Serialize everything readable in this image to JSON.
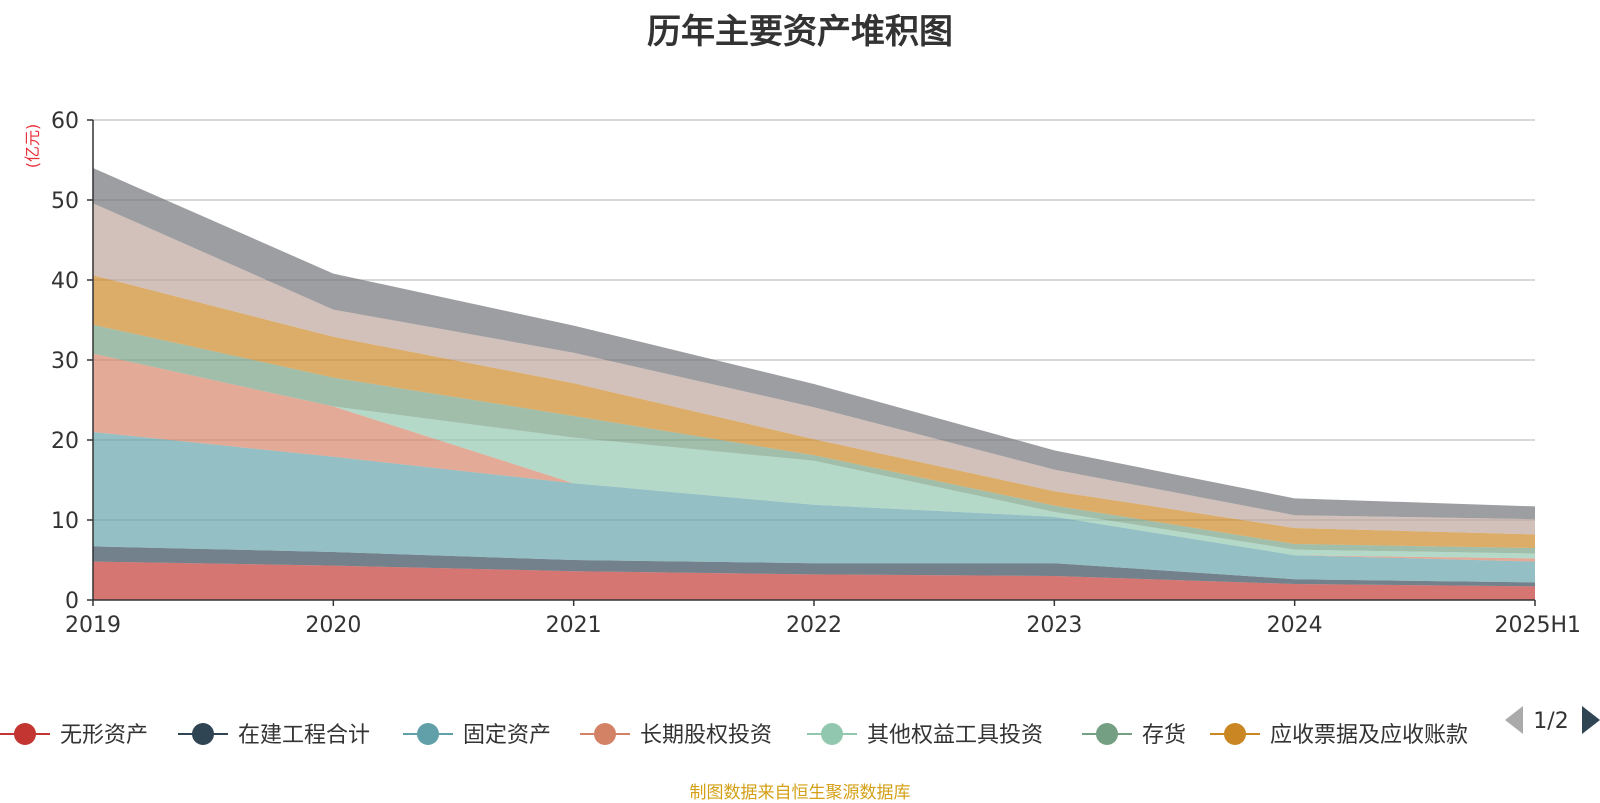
{
  "chart_data": {
    "type": "area",
    "title": "历年主要资产堆积图",
    "ylabel": "(亿元)",
    "xlabel": "",
    "categories": [
      "2019",
      "2020",
      "2021",
      "2022",
      "2023",
      "2024",
      "2025H1"
    ],
    "ylim": [
      0,
      60
    ],
    "yticks": [
      0,
      10,
      20,
      30,
      40,
      50,
      60
    ],
    "stacked": true,
    "grid": true,
    "legend_position": "bottom",
    "series": [
      {
        "name": "无形资产",
        "color": "#c23531",
        "values": [
          4.8,
          4.3,
          3.6,
          3.2,
          3.0,
          2.0,
          1.7
        ]
      },
      {
        "name": "在建工程合计",
        "color": "#2f4554",
        "values": [
          1.9,
          1.7,
          1.4,
          1.4,
          1.6,
          0.6,
          0.5
        ]
      },
      {
        "name": "固定资产",
        "color": "#61a0a8",
        "values": [
          14.3,
          11.9,
          9.6,
          7.3,
          5.8,
          3.0,
          2.6
        ]
      },
      {
        "name": "长期股权投资",
        "color": "#d48265",
        "values": [
          9.8,
          6.3,
          0.0,
          0.0,
          0.0,
          0.0,
          0.4
        ]
      },
      {
        "name": "其他权益工具投资",
        "color": "#91c7ae",
        "values": [
          0.0,
          0.0,
          5.7,
          5.5,
          0.6,
          0.7,
          0.6
        ]
      },
      {
        "name": "存货",
        "color": "#749f83",
        "values": [
          3.6,
          3.6,
          2.7,
          0.7,
          0.8,
          0.7,
          0.7
        ]
      },
      {
        "name": "应收票据及应收账款",
        "color": "#ca8622",
        "values": [
          6.2,
          5.1,
          4.1,
          2.0,
          1.8,
          2.0,
          1.7
        ]
      },
      {
        "name": "",
        "color": "#bda29a",
        "values": [
          9.0,
          3.4,
          3.8,
          4.0,
          2.7,
          1.6,
          1.9
        ]
      },
      {
        "name": "",
        "color": "#6e7074",
        "values": [
          4.4,
          4.5,
          3.4,
          2.9,
          2.4,
          2.1,
          1.6
        ]
      }
    ]
  },
  "legend": {
    "page_indicator": "1/2",
    "prev_icon": "triangle-left-icon",
    "next_icon": "triangle-right-icon"
  },
  "footer": {
    "source_note": "制图数据来自恒生聚源数据库"
  }
}
